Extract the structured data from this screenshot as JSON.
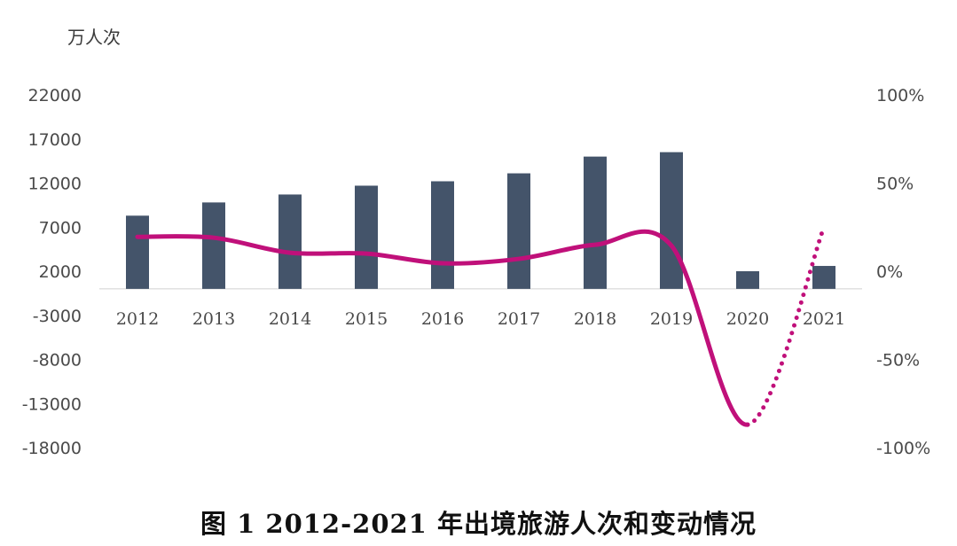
{
  "unit_label": "万人次",
  "caption": "图 1 2012-2021 年出境旅游人次和变动情况",
  "chart_data": {
    "type": "bar",
    "categories": [
      "2012",
      "2013",
      "2014",
      "2015",
      "2016",
      "2017",
      "2018",
      "2019",
      "2020",
      "2021"
    ],
    "series": [
      {
        "type": "bar",
        "axis": "left",
        "values": [
          8300,
          9800,
          10700,
          11700,
          12200,
          13100,
          15000,
          15500,
          2000,
          2600
        ],
        "color": "#44546a"
      },
      {
        "type": "line",
        "axis": "right",
        "values": [
          19.5,
          19.0,
          10.5,
          10.0,
          4.5,
          7.0,
          15.0,
          14.5,
          -87.0,
          25.0
        ],
        "color": "#c0107a",
        "dotted_segments": [
          "2020-2021"
        ]
      }
    ],
    "y_left": {
      "ticks": [
        "22000",
        "17000",
        "12000",
        "7000",
        "2000",
        "-3000",
        "-8000",
        "-13000",
        "-18000"
      ],
      "ylim": [
        -18000,
        22000
      ]
    },
    "y_right": {
      "ticks": [
        "100%",
        "50%",
        "0%",
        "-50%",
        "-100%"
      ],
      "ylim": [
        -100,
        100
      ]
    },
    "grid": false
  }
}
